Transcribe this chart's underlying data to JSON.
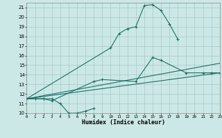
{
  "xlabel": "Humidex (Indice chaleur)",
  "bg_color": "#cce8e6",
  "grid_color": "#aacfcc",
  "line_color": "#1a6e65",
  "xlim": [
    0,
    23
  ],
  "ylim": [
    10,
    21.5
  ],
  "xticks": [
    0,
    1,
    2,
    3,
    4,
    5,
    6,
    7,
    8,
    9,
    10,
    11,
    12,
    13,
    14,
    15,
    16,
    17,
    18,
    19,
    20,
    21,
    22,
    23
  ],
  "yticks": [
    10,
    11,
    12,
    13,
    14,
    15,
    16,
    17,
    18,
    19,
    20,
    21
  ],
  "curve_dip_x": [
    0,
    1,
    2,
    3,
    4,
    5,
    6,
    7,
    8
  ],
  "curve_dip_y": [
    11.5,
    11.5,
    11.5,
    11.5,
    11.0,
    10.0,
    10.0,
    10.2,
    10.5
  ],
  "curve_mid_x": [
    0,
    2,
    3,
    8,
    9,
    13,
    15,
    16,
    19,
    21,
    22,
    23
  ],
  "curve_mid_y": [
    11.5,
    11.5,
    11.3,
    13.3,
    13.5,
    13.3,
    15.8,
    15.5,
    14.2,
    14.2,
    14.2,
    14.2
  ],
  "curve_top_x": [
    0,
    10,
    11,
    12,
    13,
    14,
    15,
    16,
    17,
    18
  ],
  "curve_top_y": [
    11.5,
    16.8,
    18.3,
    18.8,
    19.0,
    21.2,
    21.3,
    20.7,
    19.3,
    17.7
  ],
  "line1_x": [
    0,
    23
  ],
  "line1_y": [
    11.5,
    14.2
  ],
  "line2_x": [
    0,
    23
  ],
  "line2_y": [
    11.5,
    15.2
  ]
}
